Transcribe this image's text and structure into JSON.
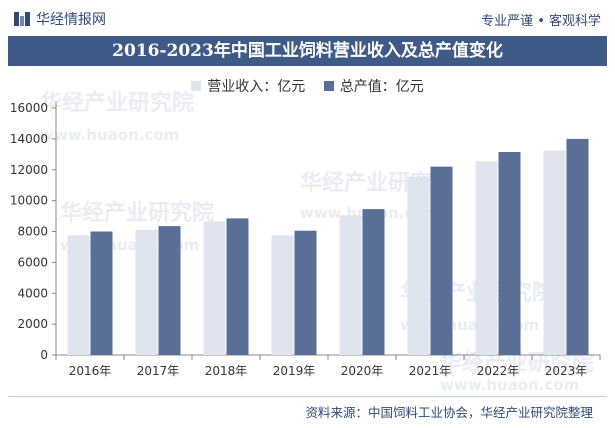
{
  "header": {
    "brand_name": "华经情报网",
    "tagline": "专业严谨 • 客观科学"
  },
  "watermarks": [
    "华经产业研究院",
    "www.huaon.com"
  ],
  "source_note": "资料来源：中国饲料工业协会，华经产业研究院整理",
  "colors": {
    "revenue": "#dfe4ee",
    "output": "#5a6f96",
    "title_band": "#3f5a86",
    "brand": "#2f4a7a"
  },
  "chart_data": {
    "type": "bar",
    "title": "2016-2023年中国工业饲料营业收入及总产值变化",
    "categories": [
      "2016年",
      "2017年",
      "2018年",
      "2019年",
      "2020年",
      "2021年",
      "2022年",
      "2023年"
    ],
    "series": [
      {
        "name": "营业收入：亿元",
        "values": [
          7750,
          8100,
          8650,
          7750,
          9050,
          11550,
          12550,
          13250
        ]
      },
      {
        "name": "总产值：亿元",
        "values": [
          8000,
          8350,
          8850,
          8050,
          9450,
          12200,
          13150,
          14000
        ]
      }
    ],
    "y_ticks": [
      0,
      2000,
      4000,
      6000,
      8000,
      10000,
      12000,
      14000,
      16000
    ],
    "ylim": [
      0,
      16000
    ],
    "grid": false,
    "legend_position": "top-center"
  }
}
